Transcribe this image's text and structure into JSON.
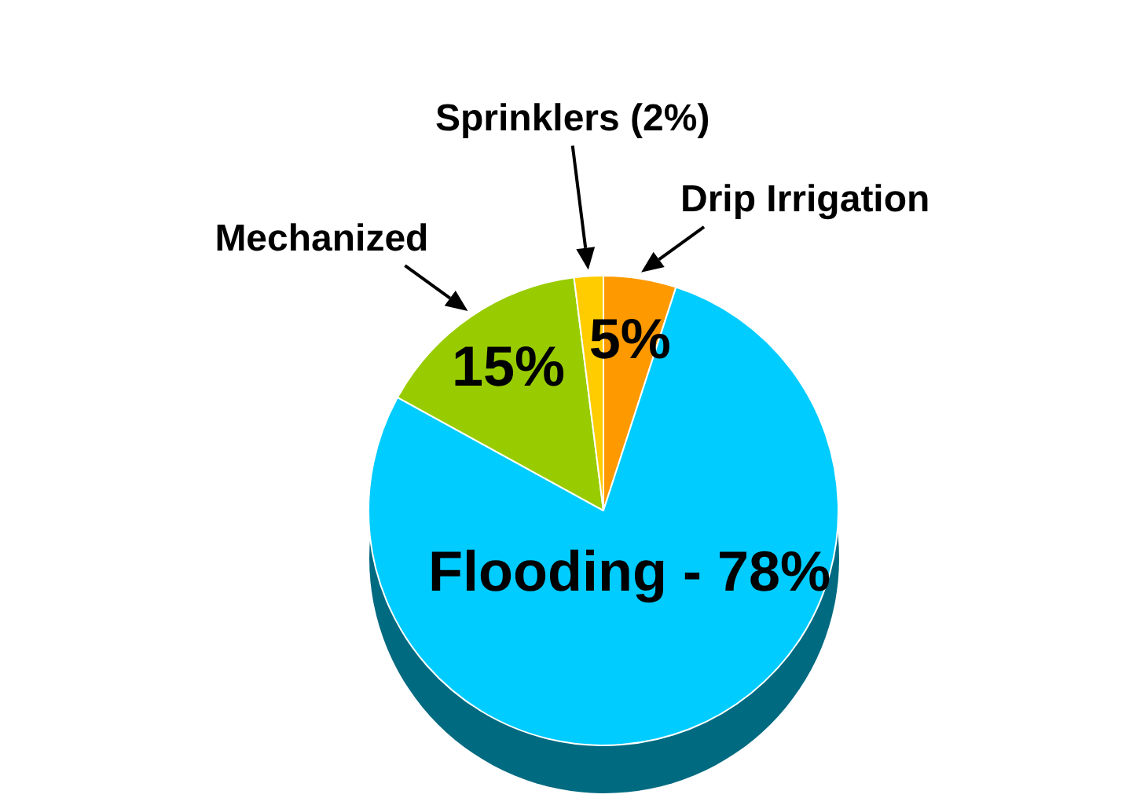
{
  "chart_data": {
    "type": "pie",
    "categories": [
      "Drip Irrigation",
      "Flooding - 78%",
      "Mechanized",
      "Sprinklers (2%)"
    ],
    "values": [
      5,
      78,
      15,
      2
    ],
    "colors": [
      "#ff9900",
      "#00ccff",
      "#99cc00",
      "#ffcc00"
    ],
    "value_labels": [
      "5%",
      null,
      "15%",
      null
    ],
    "legend": false
  }
}
